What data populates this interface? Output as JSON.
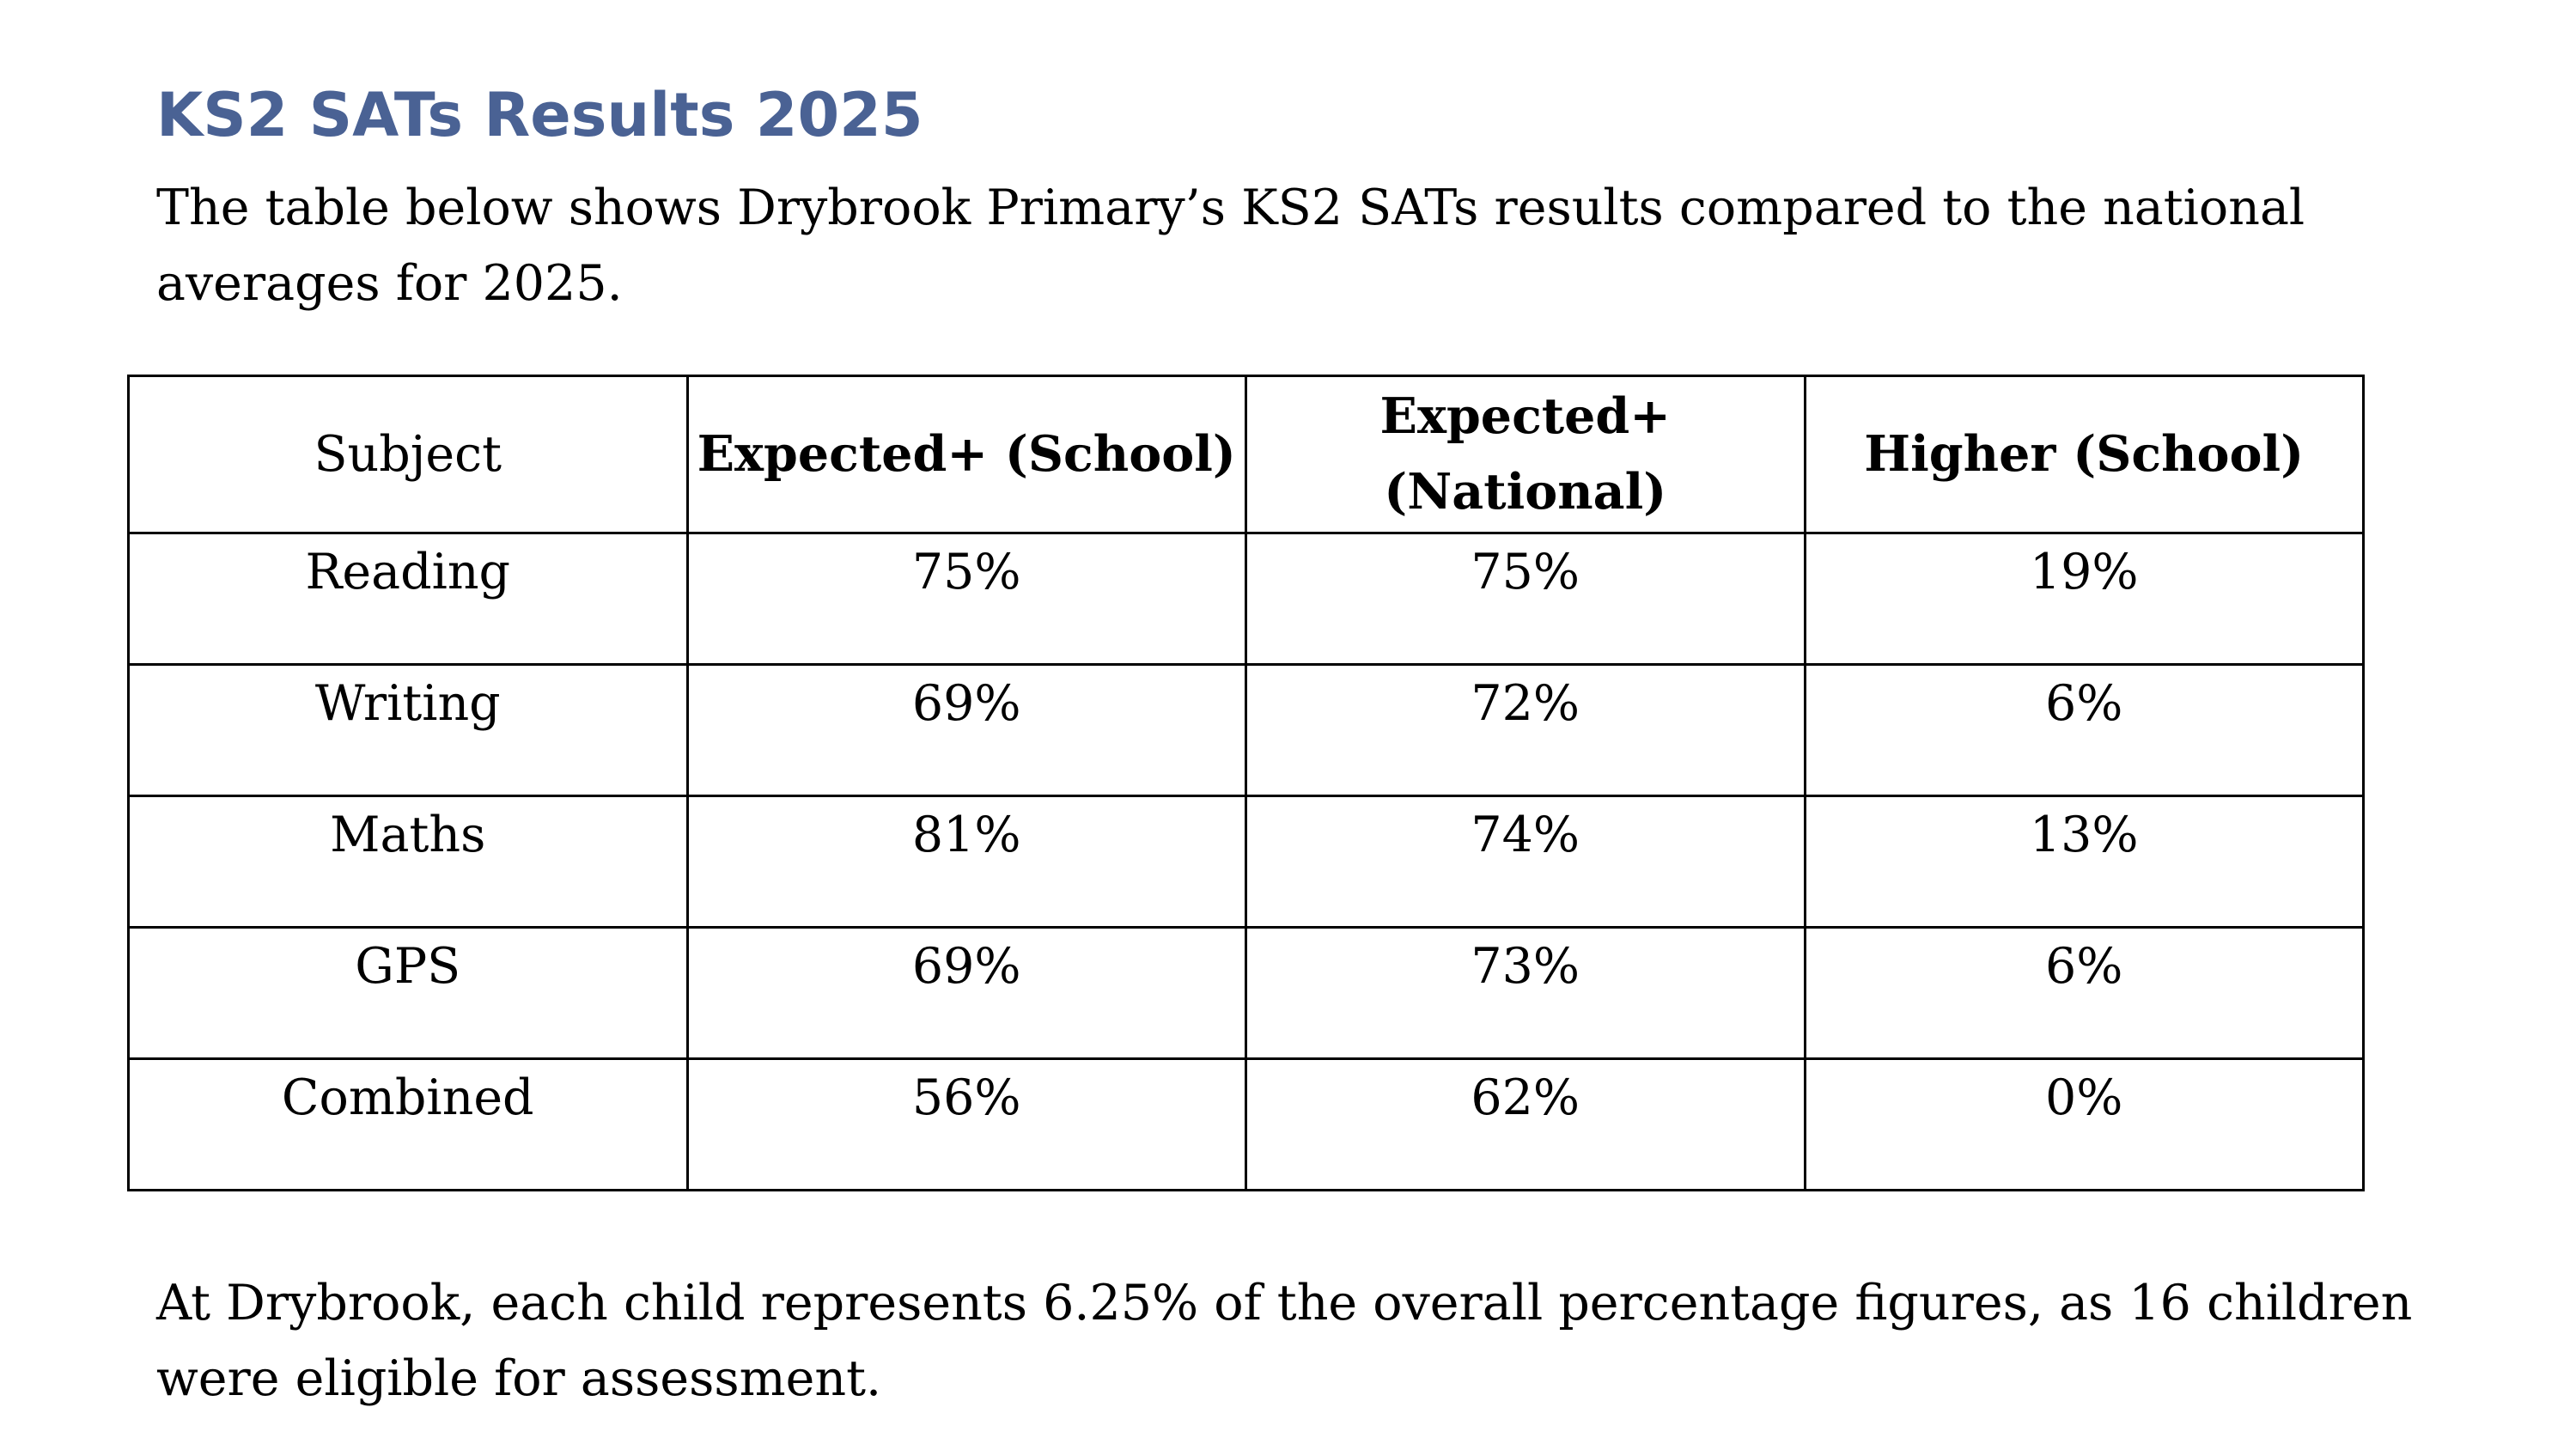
{
  "heading": "KS2 SATs Results 2025",
  "intro": "The table below shows Drybrook Primary’s KS2 SATs results compared to the national averages for 2025.",
  "table": {
    "headers": [
      "Subject",
      "Expected+ (School)",
      "Expected+ (National)",
      "Higher (School)"
    ],
    "rows": [
      [
        "Reading",
        "75%",
        "75%",
        "19%"
      ],
      [
        "Writing",
        "69%",
        "72%",
        "6%"
      ],
      [
        "Maths",
        "81%",
        "74%",
        "13%"
      ],
      [
        "GPS",
        "69%",
        "73%",
        "6%"
      ],
      [
        "Combined",
        "56%",
        "62%",
        "0%"
      ]
    ]
  },
  "outro": "At Drybrook, each child represents 6.25% of the overall percentage figures, as 16 children were eligible for assessment.",
  "colors": {
    "heading": "#4a6294",
    "text": "#000000",
    "border": "#000000"
  }
}
